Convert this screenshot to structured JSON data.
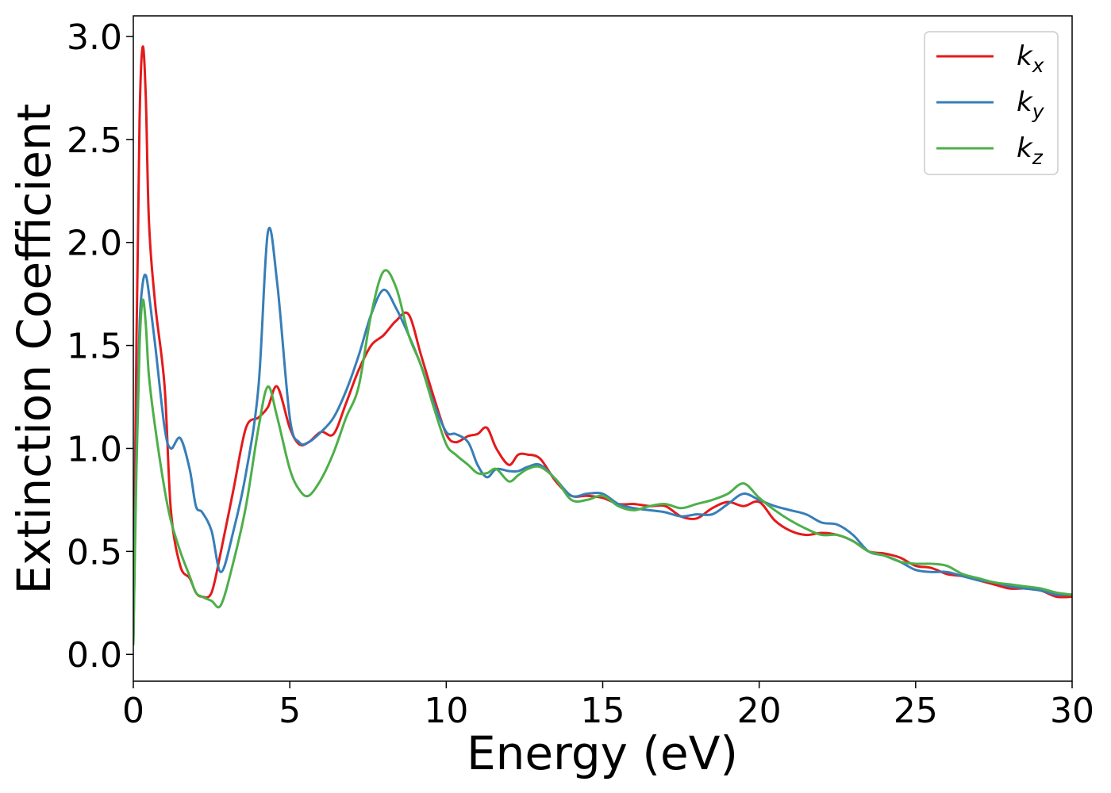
{
  "chart_data": {
    "type": "line",
    "title": "",
    "xlabel": "Energy (eV)",
    "ylabel": "Extinction Coefficient",
    "xlim": [
      0,
      30
    ],
    "ylim": [
      -0.13,
      3.1
    ],
    "xticks": [
      0,
      5,
      10,
      15,
      20,
      25,
      30
    ],
    "yticks": [
      0.0,
      0.5,
      1.0,
      1.5,
      2.0,
      2.5,
      3.0
    ],
    "xtick_labels": [
      "0",
      "5",
      "10",
      "15",
      "20",
      "25",
      "30"
    ],
    "ytick_labels": [
      "0.0",
      "0.5",
      "1.0",
      "1.5",
      "2.0",
      "2.5",
      "3.0"
    ],
    "grid": false,
    "legend_position": "top-right",
    "series": [
      {
        "name": "k",
        "subscript": "x",
        "color": "#e41a1c",
        "x": [
          0,
          0.1,
          0.2,
          0.3,
          0.4,
          0.5,
          0.7,
          1.0,
          1.2,
          1.5,
          1.8,
          2.0,
          2.2,
          2.5,
          2.8,
          3.2,
          3.6,
          4.0,
          4.3,
          4.6,
          5.0,
          5.3,
          5.6,
          6.0,
          6.4,
          6.8,
          7.2,
          7.6,
          8.0,
          8.4,
          8.8,
          9.2,
          9.6,
          10.0,
          10.3,
          10.7,
          11.0,
          11.3,
          11.6,
          12.0,
          12.3,
          12.6,
          13.0,
          13.5,
          14.0,
          14.5,
          15.0,
          15.5,
          16.0,
          16.5,
          17.0,
          17.5,
          18.0,
          18.5,
          19.0,
          19.5,
          20.0,
          20.5,
          21.0,
          21.5,
          22.0,
          22.5,
          23.0,
          23.5,
          24.0,
          24.5,
          25.0,
          25.5,
          26.0,
          26.5,
          27.0,
          27.5,
          28.0,
          28.5,
          29.0,
          29.5,
          30.0
        ],
        "values": [
          0.05,
          1.5,
          2.6,
          2.95,
          2.7,
          2.1,
          1.7,
          1.3,
          0.7,
          0.43,
          0.37,
          0.3,
          0.28,
          0.3,
          0.5,
          0.8,
          1.1,
          1.15,
          1.2,
          1.3,
          1.1,
          1.02,
          1.03,
          1.08,
          1.07,
          1.22,
          1.38,
          1.5,
          1.55,
          1.62,
          1.65,
          1.45,
          1.25,
          1.07,
          1.03,
          1.06,
          1.07,
          1.1,
          1.0,
          0.92,
          0.97,
          0.97,
          0.95,
          0.84,
          0.77,
          0.77,
          0.76,
          0.73,
          0.73,
          0.72,
          0.72,
          0.67,
          0.66,
          0.71,
          0.74,
          0.72,
          0.74,
          0.65,
          0.6,
          0.58,
          0.59,
          0.58,
          0.55,
          0.5,
          0.49,
          0.47,
          0.43,
          0.42,
          0.39,
          0.38,
          0.36,
          0.34,
          0.32,
          0.32,
          0.31,
          0.28,
          0.28
        ]
      },
      {
        "name": "k",
        "subscript": "y",
        "color": "#377eb8",
        "x": [
          0,
          0.1,
          0.2,
          0.3,
          0.4,
          0.5,
          0.7,
          1.0,
          1.2,
          1.5,
          1.8,
          2.0,
          2.2,
          2.5,
          2.8,
          3.2,
          3.6,
          4.0,
          4.3,
          4.6,
          5.0,
          5.3,
          5.6,
          6.0,
          6.4,
          6.8,
          7.2,
          7.6,
          8.0,
          8.4,
          8.8,
          9.2,
          9.6,
          10.0,
          10.3,
          10.7,
          11.0,
          11.3,
          11.6,
          12.0,
          12.3,
          12.6,
          13.0,
          13.5,
          14.0,
          14.5,
          15.0,
          15.5,
          16.0,
          16.5,
          17.0,
          17.5,
          18.0,
          18.5,
          19.0,
          19.5,
          20.0,
          20.5,
          21.0,
          21.5,
          22.0,
          22.5,
          23.0,
          23.5,
          24.0,
          24.5,
          25.0,
          25.5,
          26.0,
          26.5,
          27.0,
          27.5,
          28.0,
          28.5,
          29.0,
          29.5,
          30.0
        ],
        "values": [
          0.05,
          1.0,
          1.6,
          1.8,
          1.84,
          1.75,
          1.5,
          1.1,
          1.0,
          1.05,
          0.9,
          0.72,
          0.69,
          0.6,
          0.4,
          0.6,
          0.88,
          1.3,
          2.05,
          1.8,
          1.15,
          1.03,
          1.03,
          1.08,
          1.15,
          1.28,
          1.45,
          1.65,
          1.77,
          1.68,
          1.55,
          1.4,
          1.22,
          1.08,
          1.07,
          1.03,
          0.92,
          0.86,
          0.9,
          0.89,
          0.89,
          0.91,
          0.92,
          0.85,
          0.77,
          0.78,
          0.78,
          0.73,
          0.71,
          0.7,
          0.69,
          0.67,
          0.68,
          0.68,
          0.73,
          0.78,
          0.75,
          0.72,
          0.7,
          0.68,
          0.64,
          0.63,
          0.58,
          0.5,
          0.48,
          0.45,
          0.41,
          0.4,
          0.4,
          0.38,
          0.36,
          0.35,
          0.33,
          0.32,
          0.31,
          0.29,
          0.29
        ]
      },
      {
        "name": "k",
        "subscript": "z",
        "color": "#4daf4a",
        "x": [
          0,
          0.1,
          0.2,
          0.3,
          0.4,
          0.5,
          0.7,
          1.0,
          1.2,
          1.5,
          1.8,
          2.0,
          2.2,
          2.5,
          2.8,
          3.2,
          3.6,
          4.0,
          4.3,
          4.6,
          5.0,
          5.3,
          5.6,
          6.0,
          6.4,
          6.8,
          7.2,
          7.6,
          8.0,
          8.4,
          8.8,
          9.2,
          9.6,
          10.0,
          10.3,
          10.7,
          11.0,
          11.3,
          11.6,
          12.0,
          12.3,
          12.6,
          13.0,
          13.5,
          14.0,
          14.5,
          15.0,
          15.5,
          16.0,
          16.5,
          17.0,
          17.5,
          18.0,
          18.5,
          19.0,
          19.5,
          20.0,
          20.5,
          21.0,
          21.5,
          22.0,
          22.5,
          23.0,
          23.5,
          24.0,
          24.5,
          25.0,
          25.5,
          26.0,
          26.5,
          27.0,
          27.5,
          28.0,
          28.5,
          29.0,
          29.5,
          30.0
        ],
        "values": [
          0.05,
          0.9,
          1.5,
          1.72,
          1.6,
          1.35,
          1.1,
          0.8,
          0.65,
          0.5,
          0.38,
          0.3,
          0.28,
          0.26,
          0.24,
          0.45,
          0.72,
          1.1,
          1.3,
          1.15,
          0.9,
          0.8,
          0.77,
          0.85,
          0.98,
          1.15,
          1.3,
          1.65,
          1.86,
          1.78,
          1.55,
          1.4,
          1.2,
          1.02,
          0.97,
          0.92,
          0.88,
          0.88,
          0.9,
          0.84,
          0.87,
          0.9,
          0.91,
          0.85,
          0.75,
          0.75,
          0.77,
          0.72,
          0.7,
          0.72,
          0.73,
          0.71,
          0.73,
          0.75,
          0.78,
          0.83,
          0.76,
          0.7,
          0.65,
          0.61,
          0.58,
          0.58,
          0.55,
          0.5,
          0.48,
          0.45,
          0.44,
          0.44,
          0.43,
          0.39,
          0.37,
          0.35,
          0.34,
          0.33,
          0.32,
          0.3,
          0.29
        ]
      }
    ]
  }
}
